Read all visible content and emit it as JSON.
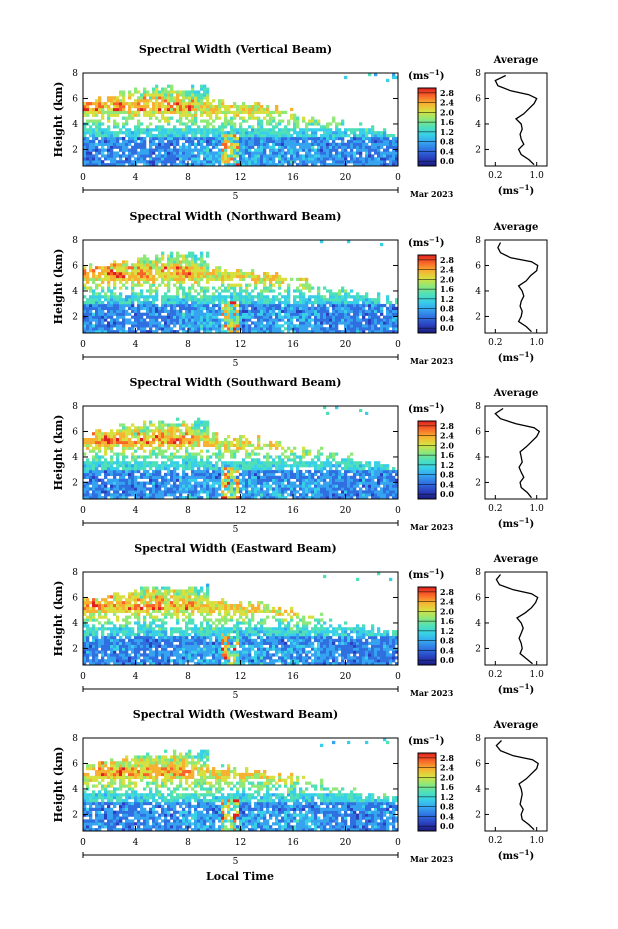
{
  "figure": {
    "xlabel_bottom": "Local Time",
    "unit_label": "(ms",
    "unit_exp": "−1",
    "avg_xlabel": "(ms",
    "colorbar_ticks": [
      "0.0",
      "0.4",
      "0.8",
      "1.2",
      "1.6",
      "2.0",
      "2.4",
      "2.8"
    ],
    "colors": {
      "jet": [
        "#1a1a7a",
        "#2a3fbf",
        "#2f6fe0",
        "#35a3f0",
        "#38d0e8",
        "#4fe0b8",
        "#8fe878",
        "#d8e040",
        "#f8b030",
        "#f86428",
        "#e02020"
      ],
      "axis": "#000000",
      "background": "#ffffff"
    }
  },
  "chart_data": [
    {
      "type": "heatmap",
      "title": "Spectral Width (Vertical Beam)",
      "ylabel": "Height (km)",
      "ylim": [
        0.7,
        8
      ],
      "yticks": [
        "2",
        "4",
        "6",
        "8"
      ],
      "xlim": [
        0,
        24
      ],
      "xticks": [
        "0",
        "4",
        "8",
        "12",
        "16",
        "20",
        "0"
      ],
      "xsub_label": "5",
      "xsub_right": "Mar 2023",
      "colorbar_label": "(ms⁻¹)",
      "clim": [
        0,
        2.8
      ],
      "avg_title": "Average",
      "avg_xticks": [
        "0.2",
        "1.0"
      ],
      "avg_xlim": [
        0,
        1.2
      ],
      "avg_ylim": [
        0.7,
        8
      ],
      "avg_yticks": [
        "2",
        "4",
        "6",
        "8"
      ],
      "avg_height": [
        0.8,
        1.2,
        1.6,
        2.0,
        2.4,
        2.8,
        3.2,
        3.6,
        4.0,
        4.4,
        4.8,
        5.2,
        5.6,
        6.0,
        6.3,
        6.6,
        7.0,
        7.4,
        7.8
      ],
      "avg_width": [
        0.95,
        0.85,
        0.7,
        0.65,
        0.75,
        0.7,
        0.68,
        0.72,
        0.7,
        0.6,
        0.75,
        0.85,
        0.95,
        1.0,
        0.85,
        0.5,
        0.25,
        0.2,
        0.4
      ]
    },
    {
      "type": "heatmap",
      "title": "Spectral Width (Northward Beam)",
      "ylabel": "Height (km)",
      "ylim": [
        0.7,
        8
      ],
      "yticks": [
        "2",
        "4",
        "6",
        "8"
      ],
      "xlim": [
        0,
        24
      ],
      "xticks": [
        "0",
        "4",
        "8",
        "12",
        "16",
        "20",
        "0"
      ],
      "xsub_label": "5",
      "xsub_right": "Mar 2023",
      "colorbar_label": "(ms⁻¹)",
      "clim": [
        0,
        2.8
      ],
      "avg_title": "Average",
      "avg_xticks": [
        "0.2",
        "1.0"
      ],
      "avg_xlim": [
        0,
        1.2
      ],
      "avg_ylim": [
        0.7,
        8
      ],
      "avg_yticks": [
        "2",
        "4",
        "6",
        "8"
      ],
      "avg_height": [
        0.8,
        1.2,
        1.6,
        2.0,
        2.4,
        2.8,
        3.2,
        3.6,
        4.0,
        4.4,
        4.8,
        5.2,
        5.6,
        6.0,
        6.3,
        6.6,
        7.0,
        7.4,
        7.8
      ],
      "avg_width": [
        0.9,
        0.8,
        0.65,
        0.7,
        0.72,
        0.68,
        0.7,
        0.75,
        0.72,
        0.65,
        0.8,
        0.88,
        1.0,
        1.02,
        0.9,
        0.5,
        0.3,
        0.25,
        0.3
      ]
    },
    {
      "type": "heatmap",
      "title": "Spectral Width (Southward Beam)",
      "ylabel": "Height (km)",
      "ylim": [
        0.7,
        8
      ],
      "yticks": [
        "2",
        "4",
        "6",
        "8"
      ],
      "xlim": [
        0,
        24
      ],
      "xticks": [
        "0",
        "4",
        "8",
        "12",
        "16",
        "20",
        "0"
      ],
      "xsub_label": "5",
      "xsub_right": "Mar 2023",
      "colorbar_label": "(ms⁻¹)",
      "clim": [
        0,
        2.8
      ],
      "avg_title": "Average",
      "avg_xticks": [
        "0.2",
        "1.0"
      ],
      "avg_xlim": [
        0,
        1.2
      ],
      "avg_ylim": [
        0.7,
        8
      ],
      "avg_yticks": [
        "2",
        "4",
        "6",
        "8"
      ],
      "avg_height": [
        0.8,
        1.2,
        1.6,
        2.0,
        2.4,
        2.8,
        3.2,
        3.6,
        4.0,
        4.4,
        4.8,
        5.2,
        5.6,
        6.0,
        6.3,
        6.6,
        7.0,
        7.4,
        7.8
      ],
      "avg_width": [
        0.9,
        0.82,
        0.7,
        0.68,
        0.75,
        0.7,
        0.66,
        0.72,
        0.7,
        0.68,
        0.8,
        0.9,
        1.0,
        1.05,
        0.95,
        0.6,
        0.3,
        0.2,
        0.35
      ]
    },
    {
      "type": "heatmap",
      "title": "Spectral Width (Eastward Beam)",
      "ylabel": "Height (km)",
      "ylim": [
        0.7,
        8
      ],
      "yticks": [
        "2",
        "4",
        "6",
        "8"
      ],
      "xlim": [
        0,
        24
      ],
      "xticks": [
        "0",
        "4",
        "8",
        "12",
        "16",
        "20",
        "0"
      ],
      "xsub_label": "5",
      "xsub_right": "Mar 2023",
      "colorbar_label": "(ms⁻¹)",
      "clim": [
        0,
        2.8
      ],
      "avg_title": "Average",
      "avg_xticks": [
        "0.2",
        "1.0"
      ],
      "avg_xlim": [
        0,
        1.2
      ],
      "avg_ylim": [
        0.7,
        8
      ],
      "avg_yticks": [
        "2",
        "4",
        "6",
        "8"
      ],
      "avg_height": [
        0.8,
        1.2,
        1.6,
        2.0,
        2.4,
        2.8,
        3.2,
        3.6,
        4.0,
        4.4,
        4.8,
        5.2,
        5.6,
        6.0,
        6.3,
        6.6,
        7.0,
        7.4,
        7.8
      ],
      "avg_width": [
        0.92,
        0.8,
        0.68,
        0.72,
        0.7,
        0.66,
        0.7,
        0.74,
        0.7,
        0.62,
        0.78,
        0.9,
        0.98,
        1.02,
        0.9,
        0.55,
        0.28,
        0.22,
        0.3
      ]
    },
    {
      "type": "heatmap",
      "title": "Spectral Width (Westward Beam)",
      "ylabel": "Height (km)",
      "ylim": [
        0.7,
        8
      ],
      "yticks": [
        "2",
        "4",
        "6",
        "8"
      ],
      "xlim": [
        0,
        24
      ],
      "xticks": [
        "0",
        "4",
        "8",
        "12",
        "16",
        "20",
        "0"
      ],
      "xsub_label": "5",
      "xsub_right": "Mar 2023",
      "colorbar_label": "(ms⁻¹)",
      "clim": [
        0,
        2.8
      ],
      "avg_title": "Average",
      "avg_xticks": [
        "0.2",
        "1.0"
      ],
      "avg_xlim": [
        0,
        1.2
      ],
      "avg_ylim": [
        0.7,
        8
      ],
      "avg_yticks": [
        "2",
        "4",
        "6",
        "8"
      ],
      "avg_height": [
        0.8,
        1.2,
        1.6,
        2.0,
        2.4,
        2.8,
        3.2,
        3.6,
        4.0,
        4.4,
        4.8,
        5.2,
        5.6,
        6.0,
        6.3,
        6.6,
        7.0,
        7.4,
        7.8
      ],
      "avg_width": [
        0.95,
        0.85,
        0.72,
        0.7,
        0.74,
        0.68,
        0.7,
        0.72,
        0.7,
        0.66,
        0.8,
        0.9,
        1.0,
        1.03,
        0.92,
        0.55,
        0.3,
        0.22,
        0.32
      ]
    }
  ]
}
